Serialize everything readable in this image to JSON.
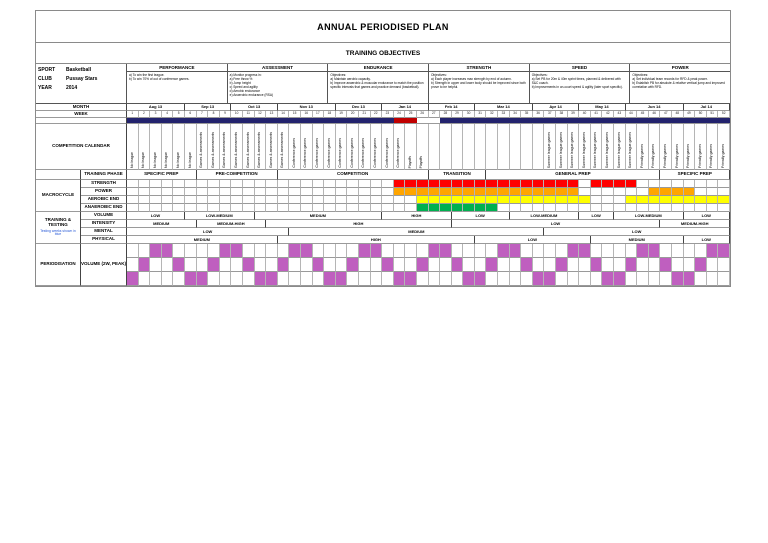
{
  "title": "ANNUAL PERIODISED PLAN",
  "subtitle": "TRAINING OBJECTIVES",
  "info": {
    "sport_label": "SPORT",
    "sport_value": "Basketball",
    "club_label": "CLUB",
    "club_value": "Pussay Stars",
    "year_label": "YEAR",
    "year_value": "2014"
  },
  "objectives": [
    {
      "header": "PERFORMANCE",
      "text": "a) To win the first league.\nb) To win 70% of out of conference games."
    },
    {
      "header": "ASSESSMENT",
      "text": "a) Monitor progress in:\na) Free throw %\nb) Jump height\nc) Speed and agility\nd) Aerobic endurance\ne) Anaerobic endurance (RSA)"
    },
    {
      "header": "ENDURANCE",
      "text": "Objectives:\na) Maintain aerobic capacity.\nb) Improve anaerobic & muscular endurance to match the position specific intervals that games and practice demand (basketball)."
    },
    {
      "header": "STRENGTH",
      "text": "Objectives:\na) Each player increases max strength by end of autumn.\nb) Strength in upper and lower body should be improved since both prove to be helpful."
    },
    {
      "header": "SPEED",
      "text": "Objectives:\na) Set PB for 20m & 40m sprint times, planned & delivered with S&C coach.\nb) Improvements in on-court speed & agility (later sport specific)."
    },
    {
      "header": "POWER",
      "text": "Objectives:\na) Set individual team records for RFD & peak power.\nb) Establish PB for absolute & relative vertical jump and improved correlation with RFD."
    }
  ],
  "calendar": {
    "month_row_label": "MONTH",
    "week_row_label": "WEEK",
    "week_count": 52,
    "months": [
      {
        "label": "Aug 13",
        "weeks": 5
      },
      {
        "label": "Sep 13",
        "weeks": 4
      },
      {
        "label": "Oct 13",
        "weeks": 4
      },
      {
        "label": "Nov 13",
        "weeks": 5
      },
      {
        "label": "Dec 13",
        "weeks": 4
      },
      {
        "label": "Jan 14",
        "weeks": 4
      },
      {
        "label": "Feb 14",
        "weeks": 4
      },
      {
        "label": "Mar 14",
        "weeks": 5
      },
      {
        "label": "Apr 14",
        "weeks": 4
      },
      {
        "label": "May 14",
        "weeks": 4
      },
      {
        "label": "Jun 14",
        "weeks": 5
      },
      {
        "label": "Jul 14",
        "weeks": 4
      }
    ],
    "band": [
      {
        "color": "#23236e",
        "weeks": 23
      },
      {
        "color": "#c00000",
        "weeks": 2
      },
      {
        "color": "#ffffff",
        "weeks": 2
      },
      {
        "color": "#23236e",
        "weeks": 25
      }
    ],
    "competition_label": "COMPETITION CALENDAR",
    "events": [
      {
        "text": "No league",
        "weeks": 6
      },
      {
        "text": "Games & assessments",
        "weeks": 8
      },
      {
        "text": "Conference games",
        "weeks": 10
      },
      {
        "text": "Playoffs",
        "weeks": 2
      },
      {
        "text": "",
        "weeks": 10
      },
      {
        "text": "Summer league games",
        "weeks": 8
      },
      {
        "text": "Friendly games",
        "weeks": 8
      }
    ]
  },
  "phase_row_label": "TRAINING PHASE",
  "phases": [
    {
      "label": "SPECIFIC PREP",
      "weeks": 6
    },
    {
      "label": "PRE-COMPETITION",
      "weeks": 7
    },
    {
      "label": "COMPETITION",
      "weeks": 13
    },
    {
      "label": "TRANSITION",
      "weeks": 5
    },
    {
      "label": "GENERAL PREP",
      "weeks": 15
    },
    {
      "label": "SPECIFIC PREP",
      "weeks": 6
    }
  ],
  "macrocycle": {
    "label": "MACROCYCLE",
    "rows": [
      {
        "label": "STRENGTH",
        "color": "#ff0000",
        "fill": [
          [
            24,
            39
          ],
          [
            41,
            44
          ]
        ]
      },
      {
        "label": "POWER",
        "color": "#ffa500",
        "fill": [
          [
            24,
            39
          ],
          [
            46,
            49
          ]
        ]
      },
      {
        "label": "AEROBIC END",
        "color": "#ffff00",
        "fill": [
          [
            26,
            40
          ],
          [
            44,
            52
          ]
        ]
      },
      {
        "label": "ANAEROBIC END",
        "color": "#00b050",
        "fill": [
          [
            26,
            32
          ]
        ]
      }
    ]
  },
  "training": {
    "label": "TRAINING & TESTING",
    "note": "Testing weeks shown in blue",
    "rows": [
      {
        "label": "VOLUME",
        "segments": [
          {
            "text": "LOW",
            "weeks": 5
          },
          {
            "text": "LOW-MEDIUM",
            "weeks": 6
          },
          {
            "text": "MEDIUM",
            "weeks": 11
          },
          {
            "text": "HIGH",
            "weeks": 6
          },
          {
            "text": "LOW",
            "weeks": 5
          },
          {
            "text": "LOW-MEDIUM",
            "weeks": 6
          },
          {
            "text": "LOW",
            "weeks": 3
          },
          {
            "text": "LOW-MEDIUM",
            "weeks": 6
          },
          {
            "text": "LOW",
            "weeks": 4
          }
        ]
      },
      {
        "label": "INTENSITY",
        "segments": [
          {
            "text": "MEDIUM",
            "weeks": 6
          },
          {
            "text": "MEDIUM-HIGH",
            "weeks": 6
          },
          {
            "text": "HIGH",
            "weeks": 16
          },
          {
            "text": "LOW",
            "weeks": 18
          },
          {
            "text": "MEDIUM-HIGH",
            "weeks": 6
          }
        ]
      },
      {
        "label": "MENTAL",
        "segments": [
          {
            "text": "LOW",
            "weeks": 14
          },
          {
            "text": "MEDIUM",
            "weeks": 22
          },
          {
            "text": "LOW",
            "weeks": 16
          }
        ]
      },
      {
        "label": "PHYSICAL",
        "segments": [
          {
            "text": "MEDIUM",
            "weeks": 13
          },
          {
            "text": "HIGH",
            "weeks": 17
          },
          {
            "text": "LOW",
            "weeks": 10
          },
          {
            "text": "MEDIUM",
            "weeks": 8
          },
          {
            "text": "LOW",
            "weeks": 4
          }
        ]
      }
    ]
  },
  "periodisation": {
    "label": "PERIODISATION",
    "sublabel": "VOLUME (2W, PEAK)",
    "color": "#bf5fbf",
    "row_count": 3,
    "pattern": [
      2,
      1,
      0,
      0,
      1,
      2,
      2,
      1,
      0,
      0,
      1,
      2,
      2,
      1,
      0,
      0,
      1,
      2,
      2,
      1,
      0,
      0,
      1,
      2,
      2,
      1,
      0,
      0,
      1,
      2,
      2,
      1,
      0,
      0,
      1,
      2,
      2,
      1,
      0,
      0,
      1,
      2,
      2,
      1,
      0,
      0,
      1,
      2,
      2,
      1,
      0,
      0
    ]
  }
}
